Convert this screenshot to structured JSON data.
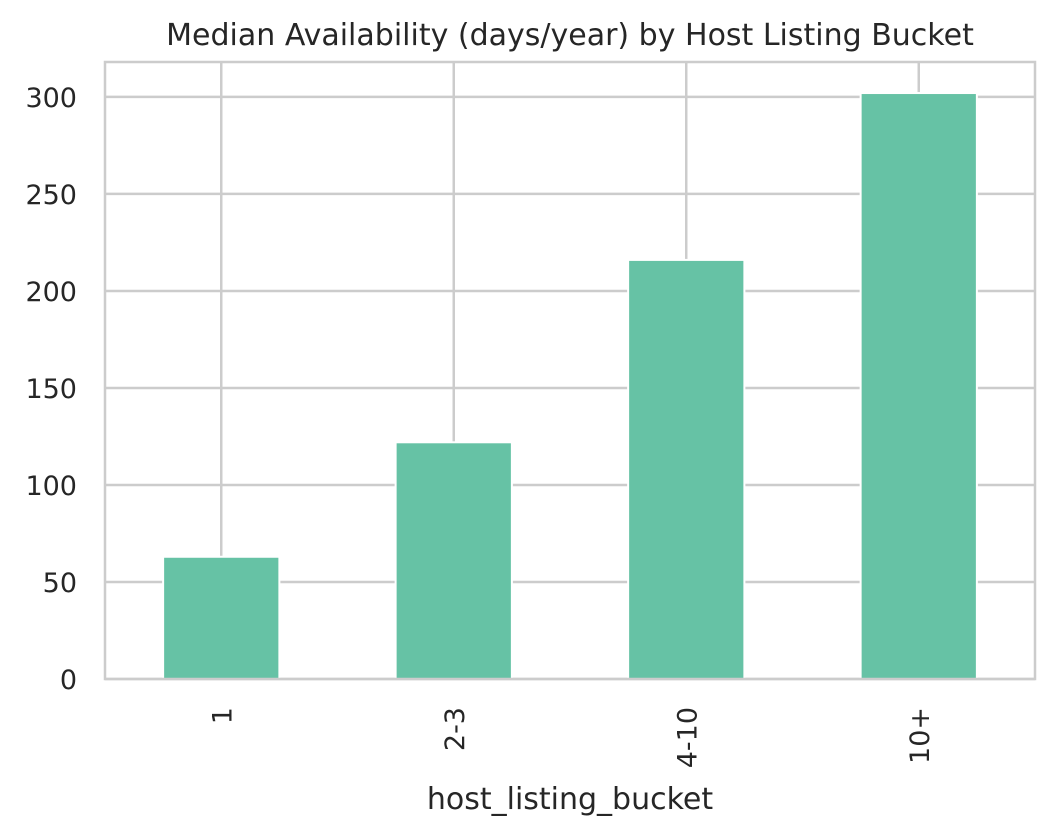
{
  "chart_data": {
    "type": "bar",
    "title": "Median Availability (days/year) by Host Listing Bucket",
    "xlabel": "host_listing_bucket",
    "ylabel": "",
    "categories": [
      "1",
      "2-3",
      "4-10",
      "10+"
    ],
    "values": [
      63,
      122,
      216,
      302
    ],
    "ylim": [
      0,
      318
    ],
    "yticks": [
      0,
      50,
      100,
      150,
      200,
      250,
      300
    ],
    "grid": true,
    "legend": "none",
    "bar_color": "#66c2a5",
    "grid_color": "#cccccc",
    "text_color": "#262626"
  }
}
